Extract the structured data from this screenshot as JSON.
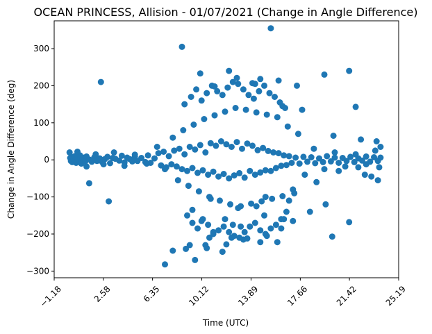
{
  "chart_data": {
    "type": "scatter",
    "title": "OCEAN PRINCESS, Allision - 01/07/2021 (Change in Angle Difference)",
    "xlabel": "Time (UTC)",
    "ylabel": "Change in Angle Difference (deg)",
    "xlim": [
      -1.18,
      25.19
    ],
    "ylim": [
      -318,
      375
    ],
    "x_ticks": [
      -1.18,
      2.58,
      6.35,
      10.12,
      13.89,
      17.66,
      21.42,
      25.19
    ],
    "x_tick_labels": [
      "−1.18",
      "2.58",
      "6.35",
      "10.12",
      "13.89",
      "17.66",
      "21.42",
      "25.19"
    ],
    "y_ticks": [
      -300,
      -200,
      -100,
      0,
      100,
      200,
      300
    ],
    "y_tick_labels": [
      "−300",
      "−200",
      "−100",
      "0",
      "100",
      "200",
      "300"
    ],
    "grid": false,
    "legend": "none",
    "marker_color": "#1f77b4",
    "series": [
      {
        "values_x": [
          0.05,
          0.1,
          0.15,
          0.2,
          0.3,
          0.4,
          0.5,
          0.6,
          0.7,
          0.8,
          0.9,
          1.0,
          1.1,
          1.2,
          1.3,
          1.5,
          1.7,
          1.9,
          2.1,
          2.3,
          2.5,
          2.7,
          2.9,
          3.1,
          3.3,
          3.5,
          3.8,
          4.0,
          4.2,
          4.4,
          4.6,
          4.8,
          5.0,
          5.2,
          5.5,
          5.8,
          6.0,
          6.2,
          6.5,
          6.8,
          7.0,
          7.2,
          7.4,
          7.6,
          7.8,
          8.0,
          8.2,
          8.4,
          8.6,
          8.8,
          9.0,
          9.2,
          9.4,
          9.6,
          9.8,
          10.0,
          10.2,
          10.4,
          10.6,
          10.8,
          11.0,
          11.2,
          11.4,
          11.6,
          11.8,
          12.0,
          12.2,
          12.4,
          12.6,
          12.8,
          13.0,
          13.2,
          13.4,
          13.6,
          13.8,
          14.0,
          14.2,
          14.4,
          14.6,
          14.8,
          15.0,
          15.2,
          15.4,
          15.6,
          15.8,
          16.0,
          16.2,
          16.4,
          16.6,
          16.8,
          17.0,
          17.3,
          17.6,
          17.9,
          18.2,
          18.5,
          18.8,
          19.1,
          19.4,
          19.7,
          20.0,
          20.3,
          20.6,
          20.9,
          21.2,
          21.5,
          21.8,
          22.1,
          22.4,
          22.7,
          23.0,
          23.3,
          23.6,
          23.8,
          0.6,
          1.3,
          2.0,
          2.6,
          3.4,
          4.2,
          5.0,
          5.9,
          6.7,
          7.3,
          7.9,
          8.3,
          8.7,
          9.1,
          9.5,
          9.9,
          10.3,
          10.7,
          11.1,
          11.5,
          11.9,
          12.3,
          12.7,
          13.1,
          13.5,
          13.9,
          14.3,
          14.7,
          15.1,
          15.5,
          15.9,
          16.3,
          16.7,
          17.1,
          17.5,
          18.0,
          18.7,
          19.5,
          20.3,
          21.1,
          21.9,
          22.7,
          23.4,
          23.7,
          8.8,
          9.3,
          9.7,
          10.1,
          10.5,
          10.9,
          11.3,
          11.7,
          12.1,
          12.5,
          12.9,
          13.3,
          13.7,
          14.1,
          14.5,
          14.9,
          15.3,
          15.7,
          16.1,
          16.5,
          9.0,
          9.4,
          9.8,
          10.2,
          10.6,
          11.0,
          11.4,
          11.8,
          12.2,
          12.6,
          13.0,
          13.4,
          13.8,
          14.2,
          14.6,
          15.0,
          15.4,
          15.8,
          16.2,
          16.6,
          0.0,
          2.4,
          3.0,
          8.6,
          10.0,
          11.1,
          12.2,
          12.8,
          14.0,
          14.2,
          14.6,
          15.4,
          16.0,
          16.3,
          17.4,
          17.8,
          19.5,
          20.2,
          21.4,
          21.9,
          22.3,
          23.5,
          23.8,
          17.1,
          12.4,
          10.4,
          9.6,
          7.9,
          7.3,
          1.5,
          10.1,
          20.1,
          21.4,
          23.1,
          23.6,
          16.4,
          14.6,
          10.5,
          11.7,
          13.3,
          15.1,
          11.0,
          9.2,
          8.9,
          12.0,
          13.6,
          15.9,
          18.4,
          19.6,
          22.6,
          12.9,
          14.9,
          10.8,
          11.9,
          13.1,
          15.0,
          16.2,
          9.4,
          10.7,
          12.5,
          14.3,
          16.8,
          17.2,
          18.9,
          20.6,
          22.1
        ],
        "values_y": [
          5,
          -3,
          8,
          -6,
          2,
          10,
          -8,
          4,
          -2,
          12,
          -10,
          3,
          6,
          -4,
          9,
          1,
          -5,
          7,
          -3,
          4,
          -6,
          2,
          8,
          -9,
          5,
          3,
          -2,
          11,
          -7,
          6,
          2,
          -4,
          9,
          -3,
          5,
          -6,
          12,
          -8,
          4,
          18,
          -15,
          22,
          -20,
          10,
          -12,
          25,
          -18,
          30,
          -25,
          15,
          -30,
          35,
          -22,
          28,
          -35,
          40,
          -28,
          20,
          -40,
          45,
          -32,
          38,
          -45,
          50,
          -38,
          42,
          -50,
          35,
          -42,
          48,
          -36,
          30,
          -48,
          44,
          -30,
          38,
          -40,
          26,
          -34,
          32,
          -28,
          24,
          -30,
          20,
          -22,
          18,
          -16,
          12,
          -14,
          10,
          -8,
          6,
          -10,
          8,
          -5,
          7,
          -9,
          4,
          -6,
          10,
          -4,
          6,
          -8,
          5,
          -3,
          8,
          -6,
          4,
          -2,
          9,
          -5,
          7,
          -3,
          6,
          22,
          -18,
          15,
          -12,
          20,
          -16,
          14,
          -10,
          35,
          -25,
          60,
          -55,
          80,
          -70,
          95,
          -85,
          110,
          -100,
          120,
          -110,
          130,
          -120,
          140,
          -125,
          135,
          -118,
          128,
          -112,
          122,
          -105,
          115,
          -98,
          90,
          -80,
          70,
          -40,
          30,
          -25,
          20,
          -18,
          15,
          -12,
          25,
          -20,
          150,
          170,
          190,
          160,
          180,
          200,
          185,
          175,
          195,
          210,
          205,
          190,
          175,
          165,
          185,
          200,
          180,
          170,
          155,
          140,
          -150,
          -170,
          -185,
          -160,
          -175,
          -200,
          -190,
          -180,
          -195,
          -205,
          -210,
          -195,
          -180,
          -170,
          -190,
          -200,
          -185,
          -175,
          -160,
          -140,
          20,
          210,
          -112,
          305,
          233,
          198,
          240,
          221,
          207,
          205,
          218,
          355,
          214,
          145,
          200,
          135,
          230,
          65,
          240,
          143,
          55,
          50,
          35,
          -165,
          -210,
          -230,
          -270,
          -245,
          -282,
          -63,
          -165,
          -207,
          -168,
          -45,
          -55,
          -160,
          -222,
          -238,
          -248,
          -215,
          -205,
          -195,
          -230,
          -240,
          -228,
          -212,
          -222,
          -140,
          -120,
          -40,
          -130,
          -150,
          -105,
          -160,
          -180,
          -100,
          -185,
          -135,
          -210,
          -175,
          -125,
          -110,
          -90,
          -60,
          -30,
          -20
        ]
      }
    ]
  }
}
